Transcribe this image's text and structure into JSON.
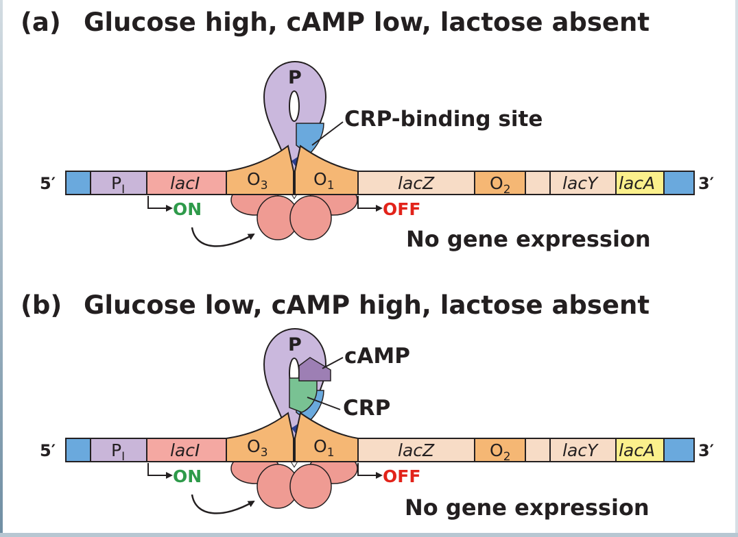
{
  "colors": {
    "dna_end": "#6aa9dd",
    "promoter_lacI": "#c9b6d9",
    "lacI_gene": "#f4a8a2",
    "operator": "#f5b774",
    "lacZ_gene": "#f7dcc6",
    "lacY_gene": "#f7dcc6",
    "lacA_gene": "#fbf08c",
    "repressor": "#ef9b93",
    "dna_loop": "#cab8dd",
    "crp_site": "#6aa9dd",
    "crp": "#79c293",
    "camp": "#9d7fb4",
    "on": "#2e9a4a",
    "off": "#e2231a"
  },
  "panels": [
    {
      "letter": "(a)",
      "title": "Glucose high, cAMP low, lactose absent",
      "five_prime": "5′",
      "three_prime": "3′",
      "loop_label": "P",
      "segments": {
        "pi_main": "P",
        "pi_sub": "I",
        "laci": "lacI",
        "o3_main": "O",
        "o3_sub": "3",
        "o1_main": "O",
        "o1_sub": "1",
        "lacz": "lacZ",
        "o2_main": "O",
        "o2_sub": "2",
        "lacy": "lacY",
        "laca": "lacA"
      },
      "callout_1": "CRP-binding site",
      "callout_2": "",
      "on_label": "ON",
      "off_label": "OFF",
      "note": "No gene expression"
    },
    {
      "letter": "(b)",
      "title": "Glucose low, cAMP high, lactose absent",
      "five_prime": "5′",
      "three_prime": "3′",
      "loop_label": "P",
      "segments": {
        "pi_main": "P",
        "pi_sub": "I",
        "laci": "lacI",
        "o3_main": "O",
        "o3_sub": "3",
        "o1_main": "O",
        "o1_sub": "1",
        "lacz": "lacZ",
        "o2_main": "O",
        "o2_sub": "2",
        "lacy": "lacY",
        "laca": "lacA"
      },
      "callout_1": "cAMP",
      "callout_2": "CRP",
      "on_label": "ON",
      "off_label": "OFF",
      "note": "No gene expression"
    }
  ]
}
